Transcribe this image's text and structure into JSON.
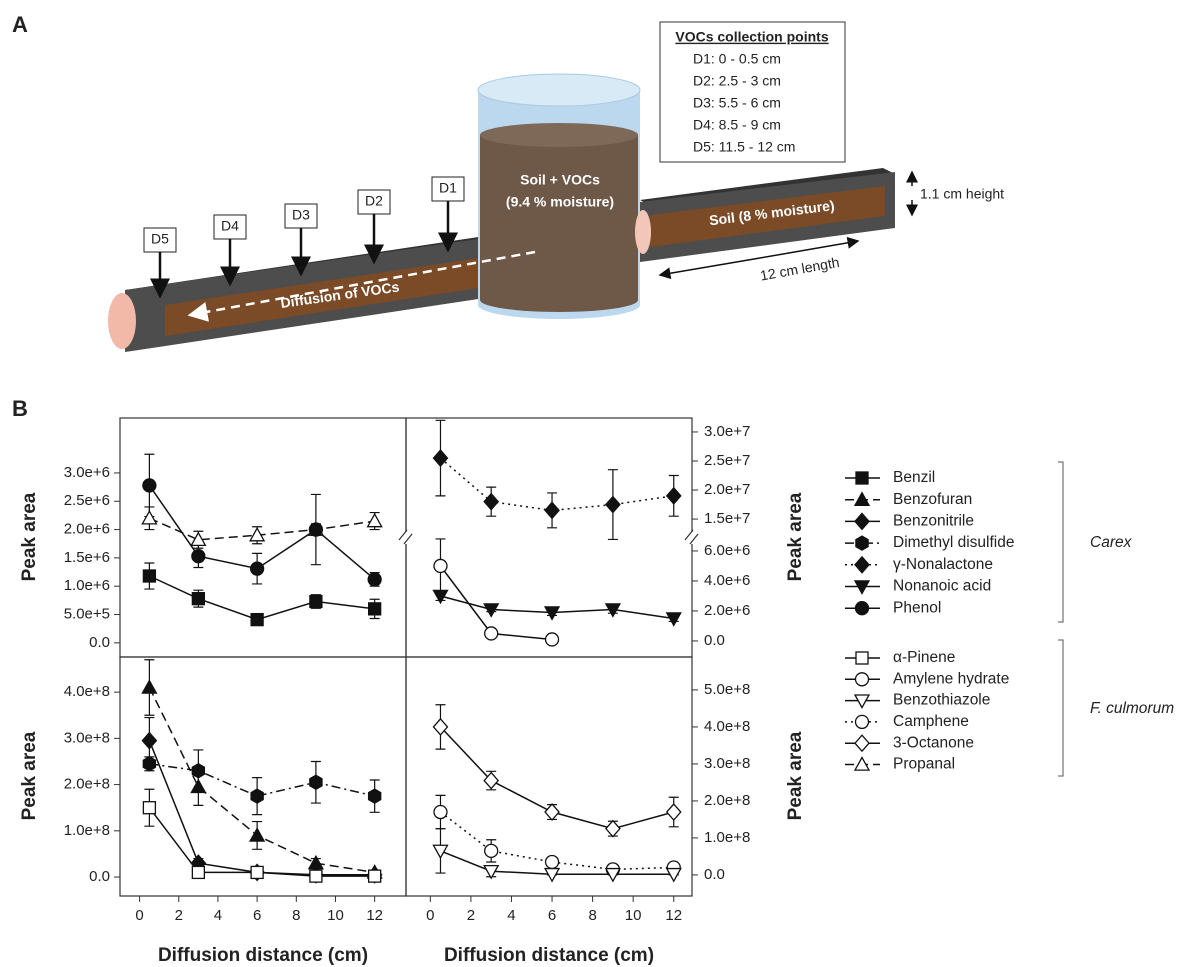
{
  "panel_a": {
    "label": "A",
    "collection_box": {
      "title": "VOCs collection points",
      "items": [
        "D1: 0 - 0.5 cm",
        "D2: 2.5 - 3 cm",
        "D3: 5.5 - 6 cm",
        "D4: 8.5 - 9 cm",
        "D5: 11.5 - 12 cm"
      ]
    },
    "points": [
      "D1",
      "D2",
      "D3",
      "D4",
      "D5"
    ],
    "reservoir": [
      "Soil + VOCs",
      "(9.4 % moisture)"
    ],
    "diffusion": "Diffusion of VOCs",
    "soil": "Soil (8 % moisture)",
    "height": "1.1 cm height",
    "length": "12 cm length"
  },
  "panel_b_label": "B",
  "chart_data": [
    {
      "type": "line",
      "ylabel": "Peak area",
      "xlim": [
        -1,
        13.6
      ],
      "ylim": [
        -250000,
        3970000
      ],
      "yticks": [
        {
          "value": 0,
          "label": "0.0"
        },
        {
          "value": 500000,
          "label": "5.0e+5"
        },
        {
          "value": 1000000,
          "label": "1.0e+6"
        },
        {
          "value": 1500000,
          "label": "1.5e+6"
        },
        {
          "value": 2000000,
          "label": "2.0e+6"
        },
        {
          "value": 2500000,
          "label": "2.5e+6"
        },
        {
          "value": 3000000,
          "label": "3.0e+6"
        }
      ],
      "x": [
        0.5,
        3,
        6,
        9,
        12
      ],
      "series": [
        {
          "name": "Propanal",
          "marker": "triangle-up",
          "filled": false,
          "dash": "dashed",
          "values": [
            2200000,
            1820000,
            1900000,
            2000000,
            2150000
          ],
          "errors": [
            200000,
            150000,
            150000,
            100000,
            150000
          ]
        },
        {
          "name": "Phenol",
          "marker": "circle",
          "filled": true,
          "dash": "solid",
          "values": [
            2780000,
            1530000,
            1310000,
            2000000,
            1120000
          ],
          "errors": [
            550000,
            200000,
            270000,
            620000,
            120000
          ]
        },
        {
          "name": "Benzil",
          "marker": "square",
          "filled": true,
          "dash": "solid",
          "values": [
            1180000,
            780000,
            410000,
            730000,
            600000
          ],
          "errors": [
            230000,
            150000,
            100000,
            120000,
            170000
          ]
        }
      ]
    },
    {
      "type": "line",
      "xlim": [
        -1.2,
        12.9
      ],
      "ylim": [
        11400000,
        32400000
      ],
      "yticks": [
        {
          "value": 15000000,
          "label": "1.5e+7"
        },
        {
          "value": 20000000,
          "label": "2.0e+7"
        },
        {
          "value": 25000000,
          "label": "2.5e+7"
        },
        {
          "value": 30000000,
          "label": "3.0e+7"
        }
      ],
      "x": [
        0.5,
        3,
        6,
        9,
        12
      ],
      "series": [
        {
          "name": "γ-Nonalactone",
          "marker": "diamond",
          "filled": true,
          "dash": "dotted",
          "values": [
            25500000,
            18000000,
            16500000,
            17500000,
            19000000
          ],
          "errors": [
            6500000,
            2500000,
            3000000,
            6000000,
            3500000
          ]
        }
      ]
    },
    {
      "type": "line",
      "ylabel": "Peak area",
      "xlim": [
        -1.2,
        12.9
      ],
      "ylim": [
        -1070000,
        6730000
      ],
      "yticks": [
        {
          "value": 0,
          "label": "0.0"
        },
        {
          "value": 2000000,
          "label": "2.0e+6"
        },
        {
          "value": 4000000,
          "label": "4.0e+6"
        },
        {
          "value": 6000000,
          "label": "6.0e+6"
        }
      ],
      "x": [
        0.5,
        3,
        6,
        9,
        12
      ],
      "series": [
        {
          "name": "Amylene hydrate",
          "marker": "circle",
          "filled": false,
          "dash": "solid",
          "values": [
            5000000,
            500000,
            100000,
            null,
            null
          ],
          "errors": [
            1800000,
            200000,
            100000,
            null,
            null
          ]
        },
        {
          "name": "Nonanoic acid",
          "marker": "triangle-down",
          "filled": true,
          "dash": "solid",
          "values": [
            3000000,
            2100000,
            1900000,
            2100000,
            1500000
          ],
          "errors": [
            300000,
            150000,
            200000,
            250000,
            200000
          ]
        }
      ]
    },
    {
      "type": "line",
      "ylabel": "Peak area",
      "xlabel": "Diffusion distance (cm)",
      "xlim": [
        -1,
        13.6
      ],
      "ylim": [
        -41000000,
        476000000
      ],
      "xticks": [
        0,
        2,
        4,
        6,
        8,
        10,
        12
      ],
      "yticks": [
        {
          "value": 0,
          "label": "0.0"
        },
        {
          "value": 100000000,
          "label": "1.0e+8"
        },
        {
          "value": 200000000,
          "label": "2.0e+8"
        },
        {
          "value": 300000000,
          "label": "3.0e+8"
        },
        {
          "value": 400000000,
          "label": "4.0e+8"
        }
      ],
      "x": [
        0.5,
        3,
        6,
        9,
        12
      ],
      "series": [
        {
          "name": "Dimethyl disulfide",
          "marker": "hexagon",
          "filled": true,
          "dash": "dashdot",
          "values": [
            245000000,
            230000000,
            175000000,
            205000000,
            175000000
          ],
          "errors": [
            15000000,
            45000000,
            40000000,
            45000000,
            35000000
          ]
        },
        {
          "name": "Benzofuran",
          "marker": "triangle-up",
          "filled": true,
          "dash": "dashed",
          "values": [
            410000000,
            195000000,
            90000000,
            30000000,
            10000000
          ],
          "errors": [
            60000000,
            40000000,
            30000000,
            10000000,
            5000000
          ]
        },
        {
          "name": "Benzonitrile",
          "marker": "diamond",
          "filled": true,
          "dash": "solid",
          "values": [
            295000000,
            30000000,
            10000000,
            5000000,
            5000000
          ],
          "errors": [
            50000000,
            10000000,
            5000000,
            3000000,
            3000000
          ]
        },
        {
          "name": "α-Pinene",
          "marker": "square",
          "filled": false,
          "dash": "solid",
          "values": [
            150000000,
            10000000,
            10000000,
            2000000,
            2000000
          ],
          "errors": [
            40000000,
            5000000,
            3000000,
            2000000,
            2000000
          ]
        }
      ]
    },
    {
      "type": "line",
      "ylabel": "Peak area",
      "xlabel": "Diffusion distance (cm)",
      "xlim": [
        -1.2,
        12.9
      ],
      "ylim": [
        -57000000,
        589000000
      ],
      "xticks": [
        0,
        2,
        4,
        6,
        8,
        10,
        12
      ],
      "yticks": [
        {
          "value": 0,
          "label": "0.0"
        },
        {
          "value": 100000000,
          "label": "1.0e+8"
        },
        {
          "value": 200000000,
          "label": "2.0e+8"
        },
        {
          "value": 300000000,
          "label": "3.0e+8"
        },
        {
          "value": 400000000,
          "label": "4.0e+8"
        },
        {
          "value": 500000000,
          "label": "5.0e+8"
        }
      ],
      "x": [
        0.5,
        3,
        6,
        9,
        12
      ],
      "series": [
        {
          "name": "3-Octanone",
          "marker": "diamond",
          "filled": false,
          "dash": "solid",
          "values": [
            400000000,
            255000000,
            170000000,
            125000000,
            170000000
          ],
          "errors": [
            60000000,
            25000000,
            20000000,
            20000000,
            40000000
          ]
        },
        {
          "name": "Camphene",
          "marker": "circle",
          "filled": false,
          "dash": "dotted",
          "values": [
            170000000,
            65000000,
            35000000,
            15000000,
            20000000
          ],
          "errors": [
            45000000,
            30000000,
            10000000,
            5000000,
            5000000
          ]
        },
        {
          "name": "Benzothiazole",
          "marker": "triangle-down",
          "filled": false,
          "dash": "solid",
          "values": [
            65000000,
            10000000,
            2000000,
            2000000,
            2000000
          ],
          "errors": [
            60000000,
            15000000,
            2000000,
            2000000,
            2000000
          ]
        }
      ]
    }
  ],
  "legend": {
    "groups": [
      {
        "label": "Carex",
        "names": [
          "Benzil",
          "Benzofuran",
          "Benzonitrile",
          "Dimethyl disulfide",
          "γ-Nonalactone",
          "Nonanoic acid",
          "Phenol"
        ]
      },
      {
        "label": "F. culmorum",
        "names": [
          "α-Pinene",
          "Amylene hydrate",
          "Benzothiazole",
          "Camphene",
          "3-Octanone",
          "Propanal"
        ]
      }
    ]
  }
}
